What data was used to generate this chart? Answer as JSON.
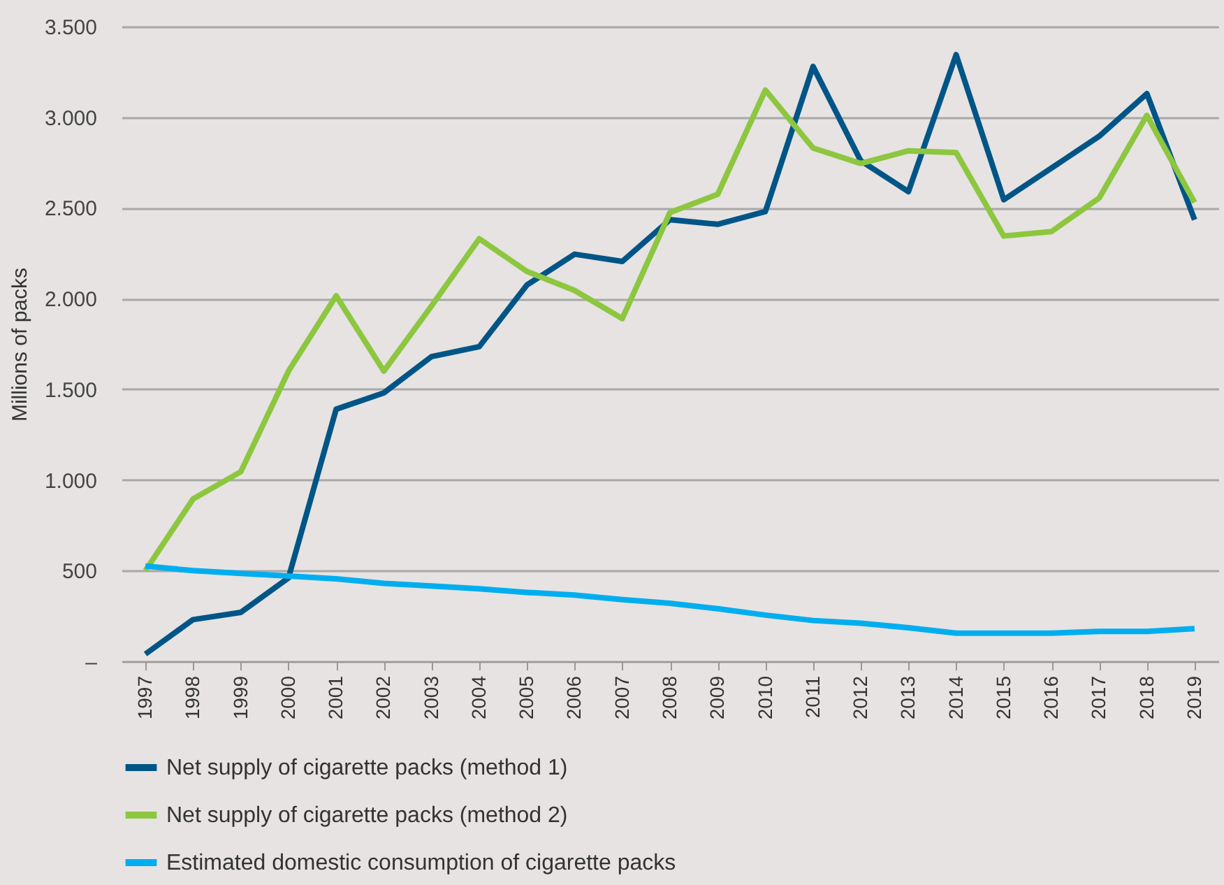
{
  "chart_data": {
    "type": "line",
    "ylabel": "Millions of packs",
    "categories": [
      "1997",
      "1998",
      "1999",
      "2000",
      "2001",
      "2002",
      "2003",
      "2004",
      "2005",
      "2006",
      "2007",
      "2008",
      "2009",
      "2010",
      "2011",
      "2012",
      "2013",
      "2014",
      "2015",
      "2016",
      "2017",
      "2018",
      "2019"
    ],
    "series": [
      {
        "name": "Net supply of cigarette packs (method 1)",
        "color": "#005587",
        "values": [
          40,
          230,
          270,
          460,
          1390,
          1480,
          1680,
          1735,
          2075,
          2245,
          2205,
          2435,
          2410,
          2480,
          3280,
          2760,
          2590,
          3345,
          2545,
          2720,
          2895,
          3130,
          2435
        ]
      },
      {
        "name": "Net supply of cigarette packs (method 2)",
        "color": "#8dc63f",
        "values": [
          500,
          895,
          1045,
          1600,
          2015,
          1600,
          1960,
          2330,
          2150,
          2045,
          1890,
          2475,
          2575,
          3150,
          2830,
          2745,
          2815,
          2805,
          2345,
          2370,
          2555,
          3010,
          2530
        ]
      },
      {
        "name": "Estimated domestic consumption of cigarette packs",
        "color": "#00aeef",
        "values": [
          525,
          500,
          485,
          470,
          455,
          430,
          415,
          400,
          380,
          365,
          340,
          320,
          290,
          255,
          225,
          210,
          185,
          155,
          155,
          155,
          165,
          165,
          180
        ]
      }
    ],
    "ylim": [
      0,
      3500
    ],
    "yticks": [
      {
        "value": 0,
        "label": "–"
      },
      {
        "value": 500,
        "label": "500"
      },
      {
        "value": 1000,
        "label": "1.000"
      },
      {
        "value": 1500,
        "label": "1.500"
      },
      {
        "value": 2000,
        "label": "2.000"
      },
      {
        "value": 2500,
        "label": "2.500"
      },
      {
        "value": 3000,
        "label": "3.000"
      },
      {
        "value": 3500,
        "label": "3.500"
      }
    ],
    "grid": "y",
    "legend": "bottom",
    "line_style": "solid",
    "marker": "none"
  }
}
